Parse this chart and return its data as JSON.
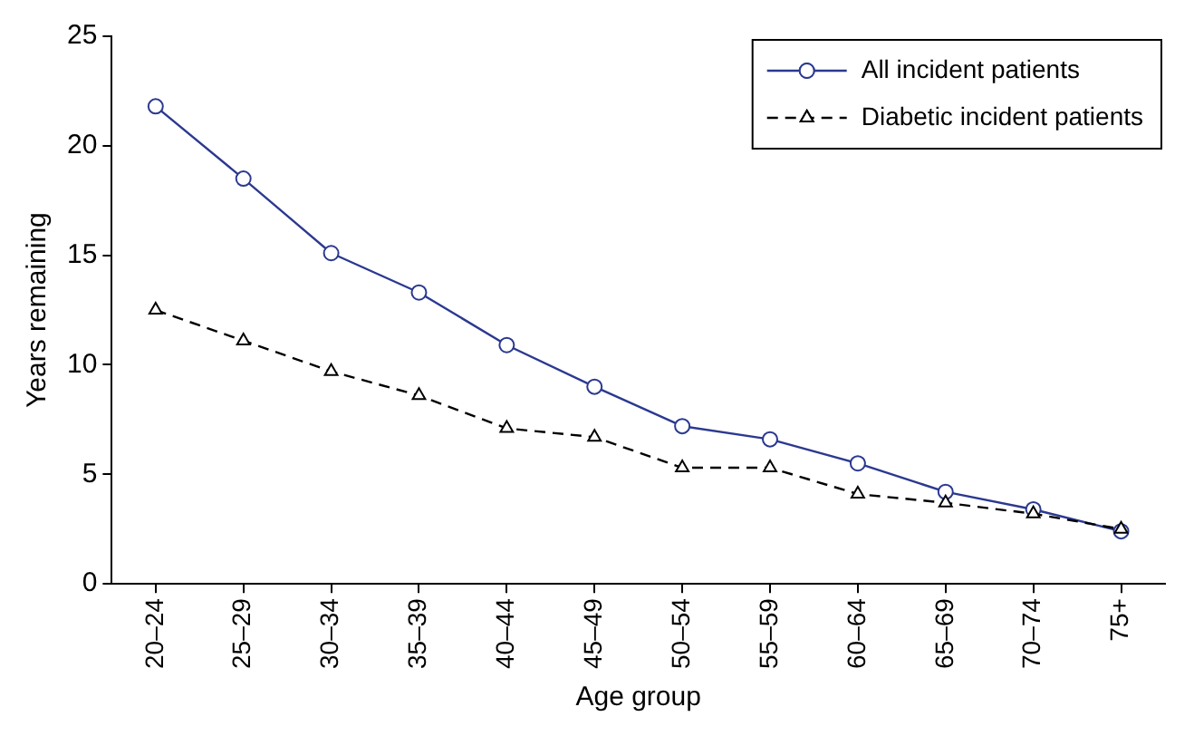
{
  "chart_data": {
    "type": "line",
    "xlabel": "Age group",
    "ylabel": "Years remaining",
    "categories": [
      "20–24",
      "25–29",
      "30–34",
      "35–39",
      "40–44",
      "45–49",
      "50–54",
      "55–59",
      "60–64",
      "65–69",
      "70–74",
      "75+"
    ],
    "series": [
      {
        "name": "All incident patients",
        "color": "#2b3990",
        "marker": "circle",
        "line_style": "solid",
        "values": [
          21.8,
          18.5,
          15.1,
          13.3,
          10.9,
          9.0,
          7.2,
          6.6,
          5.5,
          4.2,
          3.4,
          2.4
        ]
      },
      {
        "name": "Diabetic incident patients",
        "color": "#000000",
        "marker": "triangle",
        "line_style": "dashed",
        "values": [
          12.5,
          11.1,
          9.7,
          8.6,
          7.1,
          6.7,
          5.3,
          5.3,
          4.1,
          3.7,
          3.2,
          2.5
        ]
      }
    ],
    "ylim": [
      0,
      25
    ],
    "yticks": [
      0,
      5,
      10,
      15,
      20,
      25
    ],
    "grid": false,
    "legend": "top right"
  }
}
